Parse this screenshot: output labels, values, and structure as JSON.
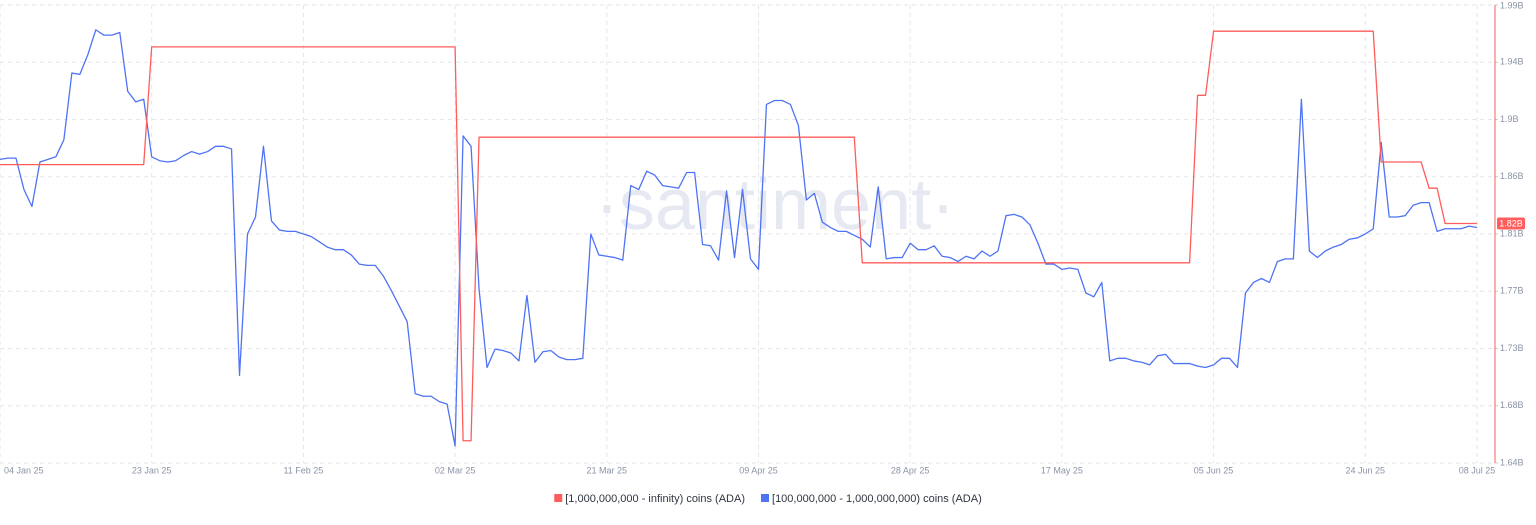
{
  "chart_data": {
    "type": "line",
    "watermark": "·santiment·",
    "x": [
      "2025-01-04",
      "2025-01-05",
      "2025-01-06",
      "2025-01-07",
      "2025-01-08",
      "2025-01-09",
      "2025-01-10",
      "2025-01-11",
      "2025-01-12",
      "2025-01-13",
      "2025-01-14",
      "2025-01-15",
      "2025-01-16",
      "2025-01-17",
      "2025-01-18",
      "2025-01-19",
      "2025-01-20",
      "2025-01-21",
      "2025-01-22",
      "2025-01-23",
      "2025-01-24",
      "2025-01-25",
      "2025-01-26",
      "2025-01-27",
      "2025-01-28",
      "2025-01-29",
      "2025-01-30",
      "2025-01-31",
      "2025-02-01",
      "2025-02-02",
      "2025-02-03",
      "2025-02-04",
      "2025-02-05",
      "2025-02-06",
      "2025-02-07",
      "2025-02-08",
      "2025-02-09",
      "2025-02-10",
      "2025-02-11",
      "2025-02-12",
      "2025-02-13",
      "2025-02-14",
      "2025-02-15",
      "2025-02-16",
      "2025-02-17",
      "2025-02-18",
      "2025-02-19",
      "2025-02-20",
      "2025-02-21",
      "2025-02-22",
      "2025-02-23",
      "2025-02-24",
      "2025-02-25",
      "2025-02-26",
      "2025-02-27",
      "2025-02-28",
      "2025-03-01",
      "2025-03-02",
      "2025-03-03",
      "2025-03-04",
      "2025-03-05",
      "2025-03-06",
      "2025-03-07",
      "2025-03-08",
      "2025-03-09",
      "2025-03-10",
      "2025-03-11",
      "2025-03-12",
      "2025-03-13",
      "2025-03-14",
      "2025-03-15",
      "2025-03-16",
      "2025-03-17",
      "2025-03-18",
      "2025-03-19",
      "2025-03-20",
      "2025-03-21",
      "2025-03-22",
      "2025-03-23",
      "2025-03-24",
      "2025-03-25",
      "2025-03-26",
      "2025-03-27",
      "2025-03-28",
      "2025-03-29",
      "2025-03-30",
      "2025-03-31",
      "2025-04-01",
      "2025-04-02",
      "2025-04-03",
      "2025-04-04",
      "2025-04-05",
      "2025-04-06",
      "2025-04-07",
      "2025-04-08",
      "2025-04-09",
      "2025-04-10",
      "2025-04-11",
      "2025-04-12",
      "2025-04-13",
      "2025-04-14",
      "2025-04-15",
      "2025-04-16",
      "2025-04-17",
      "2025-04-18",
      "2025-04-19",
      "2025-04-20",
      "2025-04-21",
      "2025-04-22",
      "2025-04-23",
      "2025-04-24",
      "2025-04-25",
      "2025-04-26",
      "2025-04-27",
      "2025-04-28",
      "2025-04-29",
      "2025-04-30",
      "2025-05-01",
      "2025-05-02",
      "2025-05-03",
      "2025-05-04",
      "2025-05-05",
      "2025-05-06",
      "2025-05-07",
      "2025-05-08",
      "2025-05-09",
      "2025-05-10",
      "2025-05-11",
      "2025-05-12",
      "2025-05-13",
      "2025-05-14",
      "2025-05-15",
      "2025-05-16",
      "2025-05-17",
      "2025-05-18",
      "2025-05-19",
      "2025-05-20",
      "2025-05-21",
      "2025-05-22",
      "2025-05-23",
      "2025-05-24",
      "2025-05-25",
      "2025-05-26",
      "2025-05-27",
      "2025-05-28",
      "2025-05-29",
      "2025-05-30",
      "2025-05-31",
      "2025-06-01",
      "2025-06-02",
      "2025-06-03",
      "2025-06-04",
      "2025-06-05",
      "2025-06-06",
      "2025-06-07",
      "2025-06-08",
      "2025-06-09",
      "2025-06-10",
      "2025-06-11",
      "2025-06-12",
      "2025-06-13",
      "2025-06-14",
      "2025-06-15",
      "2025-06-16",
      "2025-06-17",
      "2025-06-18",
      "2025-06-19",
      "2025-06-20",
      "2025-06-21",
      "2025-06-22",
      "2025-06-23",
      "2025-06-24",
      "2025-06-25",
      "2025-06-26",
      "2025-06-27",
      "2025-06-28",
      "2025-06-29",
      "2025-06-30",
      "2025-07-01",
      "2025-07-02",
      "2025-07-03",
      "2025-07-04",
      "2025-07-05",
      "2025-07-06",
      "2025-07-07",
      "2025-07-08"
    ],
    "series": [
      {
        "name": "[1,000,000,000 - infinity) coins (ADA)",
        "color": "#ff5c5c",
        "last_value_label": "1.82B",
        "values": [
          1.866,
          1.866,
          1.866,
          1.866,
          1.866,
          1.866,
          1.866,
          1.866,
          1.866,
          1.866,
          1.866,
          1.866,
          1.866,
          1.866,
          1.866,
          1.866,
          1.866,
          1.866,
          1.866,
          1.956,
          1.956,
          1.956,
          1.956,
          1.956,
          1.956,
          1.956,
          1.956,
          1.956,
          1.956,
          1.956,
          1.956,
          1.956,
          1.956,
          1.956,
          1.956,
          1.956,
          1.956,
          1.956,
          1.956,
          1.956,
          1.956,
          1.956,
          1.956,
          1.956,
          1.956,
          1.956,
          1.956,
          1.956,
          1.956,
          1.956,
          1.956,
          1.956,
          1.956,
          1.956,
          1.956,
          1.956,
          1.956,
          1.956,
          1.655,
          1.655,
          1.887,
          1.887,
          1.887,
          1.887,
          1.887,
          1.887,
          1.887,
          1.887,
          1.887,
          1.887,
          1.887,
          1.887,
          1.887,
          1.887,
          1.887,
          1.887,
          1.887,
          1.887,
          1.887,
          1.887,
          1.887,
          1.887,
          1.887,
          1.887,
          1.887,
          1.887,
          1.887,
          1.887,
          1.887,
          1.887,
          1.887,
          1.887,
          1.887,
          1.887,
          1.887,
          1.887,
          1.887,
          1.887,
          1.887,
          1.887,
          1.887,
          1.887,
          1.887,
          1.887,
          1.887,
          1.887,
          1.887,
          1.887,
          1.791,
          1.791,
          1.791,
          1.791,
          1.791,
          1.791,
          1.791,
          1.791,
          1.791,
          1.791,
          1.791,
          1.791,
          1.791,
          1.791,
          1.791,
          1.791,
          1.791,
          1.791,
          1.791,
          1.791,
          1.791,
          1.791,
          1.791,
          1.791,
          1.791,
          1.791,
          1.791,
          1.791,
          1.791,
          1.791,
          1.791,
          1.791,
          1.791,
          1.791,
          1.791,
          1.791,
          1.791,
          1.791,
          1.791,
          1.791,
          1.791,
          1.791,
          1.919,
          1.919,
          1.968,
          1.968,
          1.968,
          1.968,
          1.968,
          1.968,
          1.968,
          1.968,
          1.968,
          1.968,
          1.968,
          1.968,
          1.968,
          1.968,
          1.968,
          1.968,
          1.968,
          1.968,
          1.968,
          1.968,
          1.968,
          1.868,
          1.868,
          1.868,
          1.868,
          1.868,
          1.868,
          1.848,
          1.848,
          1.821,
          1.821,
          1.821,
          1.821,
          1.821
        ]
      },
      {
        "name": "[100,000,000 - 1,000,000,000) coins (ADA)",
        "color": "#4f73f5",
        "values": [
          1.87,
          1.871,
          1.871,
          1.847,
          1.834,
          1.868,
          1.87,
          1.872,
          1.885,
          1.936,
          1.935,
          1.95,
          1.969,
          1.965,
          1.965,
          1.967,
          1.922,
          1.914,
          1.916,
          1.872,
          1.869,
          1.868,
          1.869,
          1.873,
          1.876,
          1.874,
          1.876,
          1.88,
          1.88,
          1.878,
          1.705,
          1.813,
          1.826,
          1.88,
          1.823,
          1.816,
          1.815,
          1.815,
          1.813,
          1.811,
          1.807,
          1.803,
          1.801,
          1.801,
          1.797,
          1.79,
          1.789,
          1.789,
          1.781,
          1.77,
          1.758,
          1.746,
          1.691,
          1.689,
          1.689,
          1.685,
          1.683,
          1.651,
          1.888,
          1.88,
          1.771,
          1.711,
          1.725,
          1.724,
          1.722,
          1.716,
          1.766,
          1.715,
          1.723,
          1.724,
          1.719,
          1.717,
          1.717,
          1.718,
          1.813,
          1.797,
          1.796,
          1.795,
          1.793,
          1.85,
          1.847,
          1.861,
          1.858,
          1.85,
          1.849,
          1.848,
          1.86,
          1.86,
          1.805,
          1.804,
          1.793,
          1.846,
          1.795,
          1.847,
          1.794,
          1.786,
          1.912,
          1.915,
          1.915,
          1.912,
          1.896,
          1.839,
          1.844,
          1.822,
          1.818,
          1.815,
          1.815,
          1.812,
          1.809,
          1.803,
          1.849,
          1.794,
          1.795,
          1.795,
          1.806,
          1.801,
          1.801,
          1.804,
          1.796,
          1.795,
          1.792,
          1.796,
          1.794,
          1.8,
          1.796,
          1.8,
          1.827,
          1.828,
          1.826,
          1.82,
          1.806,
          1.79,
          1.79,
          1.786,
          1.787,
          1.786,
          1.768,
          1.765,
          1.776,
          1.716,
          1.718,
          1.718,
          1.716,
          1.715,
          1.713,
          1.72,
          1.721,
          1.714,
          1.714,
          1.714,
          1.712,
          1.711,
          1.713,
          1.718,
          1.718,
          1.711,
          1.768,
          1.776,
          1.779,
          1.776,
          1.792,
          1.794,
          1.794,
          1.916,
          1.8,
          1.795,
          1.8,
          1.803,
          1.805,
          1.809,
          1.81,
          1.813,
          1.817,
          1.883,
          1.826,
          1.826,
          1.827,
          1.835,
          1.837,
          1.837,
          1.815,
          1.817,
          1.817,
          1.817,
          1.819,
          1.818
        ]
      }
    ],
    "xlim": [
      "2025-01-04",
      "2025-07-10"
    ],
    "xticks": [
      {
        "value": "2025-01-04",
        "label": "04 Jan 25"
      },
      {
        "value": "2025-01-23",
        "label": "23 Jan 25"
      },
      {
        "value": "2025-02-11",
        "label": "11 Feb 25"
      },
      {
        "value": "2025-03-02",
        "label": "02 Mar 25"
      },
      {
        "value": "2025-03-21",
        "label": "21 Mar 25"
      },
      {
        "value": "2025-04-09",
        "label": "09 Apr 25"
      },
      {
        "value": "2025-04-28",
        "label": "28 Apr 25"
      },
      {
        "value": "2025-05-17",
        "label": "17 May 25"
      },
      {
        "value": "2025-06-05",
        "label": "05 Jun 25"
      },
      {
        "value": "2025-06-24",
        "label": "24 Jun 25"
      },
      {
        "value": "2025-07-08",
        "label": "08 Jul 25"
      }
    ],
    "ylim": [
      1.638,
      1.988
    ],
    "yticks": [
      {
        "value": 1.638,
        "label": "1.64B"
      },
      {
        "value": 1.68175,
        "label": "1.68B"
      },
      {
        "value": 1.7255,
        "label": "1.73B"
      },
      {
        "value": 1.76925,
        "label": "1.77B"
      },
      {
        "value": 1.813,
        "label": "1.81B"
      },
      {
        "value": 1.85675,
        "label": "1.86B"
      },
      {
        "value": 1.9005,
        "label": "1.9B"
      },
      {
        "value": 1.94425,
        "label": "1.94B"
      },
      {
        "value": 1.988,
        "label": "1.99B"
      }
    ],
    "grid": true,
    "legend": "bottom"
  }
}
